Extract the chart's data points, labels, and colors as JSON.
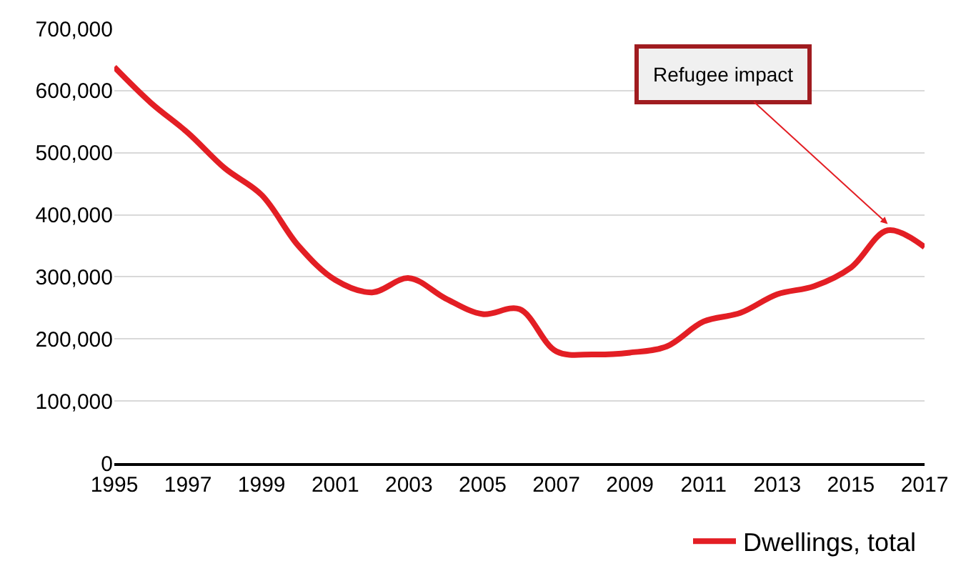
{
  "chart_data": {
    "type": "line",
    "x": [
      1995,
      1996,
      1997,
      1998,
      1999,
      2000,
      2001,
      2002,
      2003,
      2004,
      2005,
      2006,
      2007,
      2008,
      2009,
      2010,
      2011,
      2012,
      2013,
      2014,
      2015,
      2016,
      2017
    ],
    "series": [
      {
        "name": "Dwellings, total",
        "color": "#e31e24",
        "values": [
          638000,
          580000,
          532000,
          475000,
          432000,
          350000,
          295000,
          275000,
          298000,
          265000,
          240000,
          248000,
          180000,
          175000,
          178000,
          188000,
          228000,
          242000,
          272000,
          285000,
          315000,
          375000,
          348000
        ]
      }
    ],
    "xlim": [
      1995,
      2017
    ],
    "xticks": [
      1995,
      1997,
      1999,
      2001,
      2003,
      2005,
      2007,
      2009,
      2011,
      2013,
      2015,
      2017
    ],
    "ylim": [
      0,
      700000
    ],
    "yticks": [
      {
        "value": 0,
        "label": "0"
      },
      {
        "value": 100000,
        "label": "100,000"
      },
      {
        "value": 200000,
        "label": "200,000"
      },
      {
        "value": 300000,
        "label": "300,000"
      },
      {
        "value": 400000,
        "label": "400,000"
      },
      {
        "value": 500000,
        "label": "500,000"
      },
      {
        "value": 600000,
        "label": "600,000"
      },
      {
        "value": 700000,
        "label": "700,000"
      }
    ],
    "annotations": [
      {
        "text": "Refugee impact",
        "x": 2016,
        "y": 385000
      }
    ],
    "grid": "y",
    "legend": "bottom right",
    "marker": "none",
    "line_style": "solid"
  }
}
